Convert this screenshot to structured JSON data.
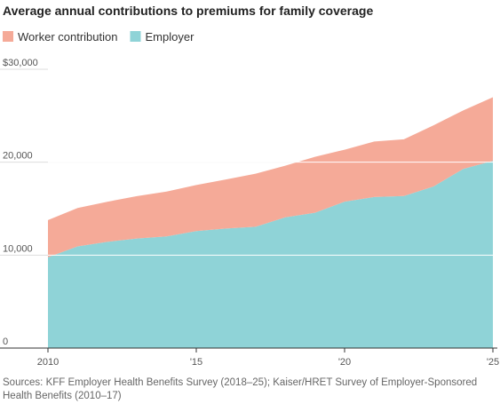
{
  "chart_data": {
    "type": "stacked-area",
    "title": "Average annual contributions to premiums for family coverage",
    "x": [
      2010,
      2011,
      2012,
      2013,
      2014,
      2015,
      2016,
      2017,
      2018,
      2019,
      2020,
      2021,
      2022,
      2023,
      2024,
      2025
    ],
    "series": [
      {
        "name": "Worker contribution",
        "color": "#f5aa98",
        "values": [
          3997,
          4129,
          4316,
          4565,
          4823,
          4955,
          5277,
          5714,
          5547,
          6015,
          5588,
          5969,
          6106,
          6575,
          6296,
          6850
        ]
      },
      {
        "name": "Employer",
        "color": "#8fd3d7",
        "values": [
          9773,
          10944,
          11429,
          11786,
          12011,
          12591,
          12865,
          13049,
          14069,
          14561,
          15754,
          16253,
          16357,
          17393,
          19276,
          20143
        ]
      }
    ],
    "xlim": [
      2010,
      2025
    ],
    "xticks": [
      {
        "value": 2010,
        "label": "2010"
      },
      {
        "value": 2015,
        "label": "'15"
      },
      {
        "value": 2020,
        "label": "'20"
      },
      {
        "value": 2025,
        "label": "'25"
      }
    ],
    "ylim": [
      0,
      30000
    ],
    "yticks": [
      0,
      {
        "value": 10000,
        "label": "10,000"
      },
      {
        "value": 20000,
        "label": "20,000"
      },
      {
        "value": 30000,
        "label": "$30,000"
      }
    ],
    "grid": true,
    "legend": "top-left",
    "source": "Sources: KFF Employer Health Benefits Survey (2018–25); Kaiser/HRET Survey of Employer-Sponsored Health Benefits (2010–17)"
  }
}
